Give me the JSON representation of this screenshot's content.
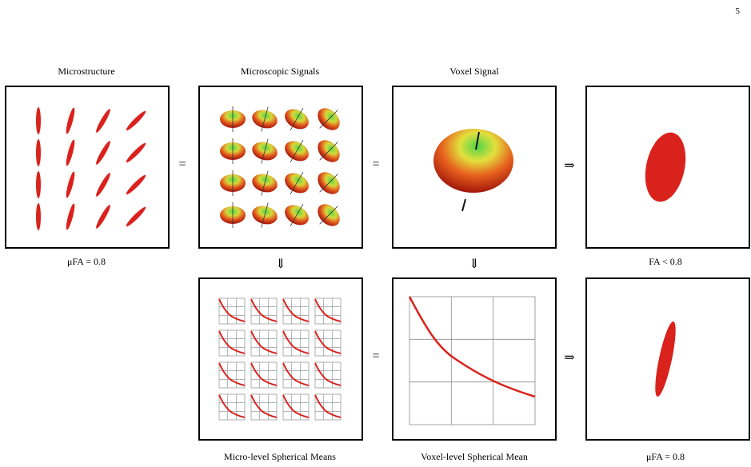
{
  "page_number": "5",
  "titles": {
    "microstructure": "Microstructure",
    "microscopic_signals": "Microscopic Signals",
    "voxel_signal": "Voxel Signal"
  },
  "captions": {
    "mu_fa_top": "μFA = 0.8",
    "fa_top": "FA < 0.8",
    "micro_means": "Micro-level Spherical Means",
    "voxel_mean": "Voxel-level Spherical Mean",
    "mu_fa_bottom": "μFA = 0.8"
  },
  "operators": {
    "equals": "=",
    "implies": "⇒",
    "down_implies": "⇓"
  },
  "colors": {
    "red": "#d9221c",
    "grid": "#8c8c8c",
    "green": "#3cc43c",
    "orange": "#e7802a"
  }
}
